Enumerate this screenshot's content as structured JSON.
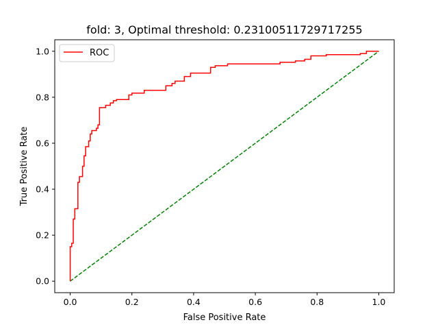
{
  "chart_data": {
    "type": "line",
    "title": "fold: 3, Optimal threshold: 0.23100511729717255",
    "xlabel": "False Positive Rate",
    "ylabel": "True Positive Rate",
    "xlim": [
      -0.05,
      1.05
    ],
    "ylim": [
      -0.05,
      1.05
    ],
    "xticks": [
      0.0,
      0.2,
      0.4,
      0.6,
      0.8,
      1.0
    ],
    "yticks": [
      0.0,
      0.2,
      0.4,
      0.6,
      0.8,
      1.0
    ],
    "xtick_labels": [
      "0.0",
      "0.2",
      "0.4",
      "0.6",
      "0.8",
      "1.0"
    ],
    "ytick_labels": [
      "0.0",
      "0.2",
      "0.4",
      "0.6",
      "0.8",
      "1.0"
    ],
    "grid": false,
    "legend": {
      "placement": "top-left",
      "entries": [
        "ROC"
      ]
    },
    "series": [
      {
        "name": "ROC",
        "color": "#ff0000",
        "style": "solid-step",
        "points": [
          [
            0.0,
            0.0
          ],
          [
            0.0,
            0.15
          ],
          [
            0.005,
            0.15
          ],
          [
            0.005,
            0.165
          ],
          [
            0.01,
            0.165
          ],
          [
            0.01,
            0.27
          ],
          [
            0.015,
            0.27
          ],
          [
            0.015,
            0.315
          ],
          [
            0.025,
            0.315
          ],
          [
            0.025,
            0.43
          ],
          [
            0.03,
            0.43
          ],
          [
            0.03,
            0.455
          ],
          [
            0.04,
            0.455
          ],
          [
            0.04,
            0.5
          ],
          [
            0.045,
            0.5
          ],
          [
            0.045,
            0.545
          ],
          [
            0.05,
            0.545
          ],
          [
            0.05,
            0.585
          ],
          [
            0.06,
            0.585
          ],
          [
            0.06,
            0.61
          ],
          [
            0.065,
            0.61
          ],
          [
            0.065,
            0.64
          ],
          [
            0.07,
            0.64
          ],
          [
            0.07,
            0.655
          ],
          [
            0.085,
            0.655
          ],
          [
            0.085,
            0.665
          ],
          [
            0.09,
            0.665
          ],
          [
            0.09,
            0.68
          ],
          [
            0.095,
            0.68
          ],
          [
            0.095,
            0.755
          ],
          [
            0.115,
            0.755
          ],
          [
            0.115,
            0.765
          ],
          [
            0.13,
            0.765
          ],
          [
            0.13,
            0.775
          ],
          [
            0.14,
            0.775
          ],
          [
            0.14,
            0.785
          ],
          [
            0.15,
            0.785
          ],
          [
            0.15,
            0.79
          ],
          [
            0.19,
            0.79
          ],
          [
            0.19,
            0.81
          ],
          [
            0.2,
            0.81
          ],
          [
            0.2,
            0.818
          ],
          [
            0.24,
            0.818
          ],
          [
            0.24,
            0.83
          ],
          [
            0.31,
            0.83
          ],
          [
            0.31,
            0.85
          ],
          [
            0.33,
            0.85
          ],
          [
            0.33,
            0.86
          ],
          [
            0.34,
            0.86
          ],
          [
            0.34,
            0.87
          ],
          [
            0.37,
            0.87
          ],
          [
            0.37,
            0.89
          ],
          [
            0.39,
            0.89
          ],
          [
            0.39,
            0.905
          ],
          [
            0.455,
            0.905
          ],
          [
            0.455,
            0.93
          ],
          [
            0.47,
            0.93
          ],
          [
            0.47,
            0.937
          ],
          [
            0.51,
            0.937
          ],
          [
            0.51,
            0.945
          ],
          [
            0.68,
            0.945
          ],
          [
            0.68,
            0.952
          ],
          [
            0.73,
            0.952
          ],
          [
            0.73,
            0.958
          ],
          [
            0.76,
            0.958
          ],
          [
            0.76,
            0.965
          ],
          [
            0.78,
            0.965
          ],
          [
            0.78,
            0.98
          ],
          [
            0.83,
            0.98
          ],
          [
            0.83,
            0.985
          ],
          [
            0.94,
            0.985
          ],
          [
            0.94,
            0.99
          ],
          [
            0.96,
            0.99
          ],
          [
            0.96,
            1.0
          ],
          [
            1.0,
            1.0
          ]
        ]
      },
      {
        "name": "",
        "color": "#008000",
        "style": "dashed",
        "points": [
          [
            0.0,
            0.0
          ],
          [
            1.0,
            1.0
          ]
        ]
      }
    ]
  }
}
